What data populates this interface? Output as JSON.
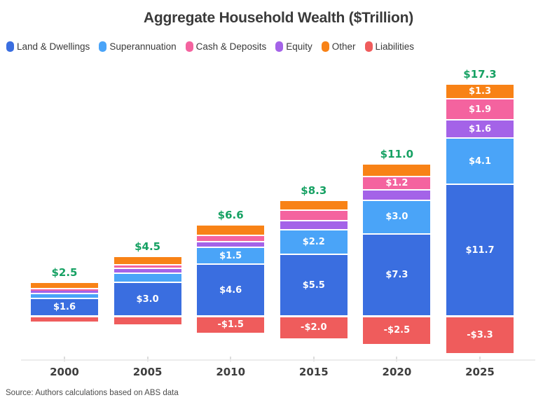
{
  "title": "Aggregate Household Wealth ($Trillion)",
  "source": "Source: Authors calculations based on ABS data",
  "colors": {
    "total_label": "#16a163",
    "axis_line": "#ececec",
    "background": "#ffffff"
  },
  "chart_data": {
    "type": "bar",
    "subtype": "stacked-with-negatives",
    "title": "Aggregate Household Wealth ($Trillion)",
    "categories": [
      "2000",
      "2005",
      "2010",
      "2015",
      "2020",
      "2025"
    ],
    "totals_labels": [
      "$2.5",
      "$4.5",
      "$6.6",
      "$8.3",
      "$11.0",
      "$17.3"
    ],
    "totals_values": [
      2.5,
      4.5,
      6.6,
      8.3,
      11.0,
      17.3
    ],
    "series": [
      {
        "name": "Land & Dwellings",
        "color": "#3a6ee0",
        "values": [
          1.6,
          3.0,
          4.6,
          5.5,
          7.3,
          11.7
        ],
        "labels": [
          "$1.6",
          "$3.0",
          "$4.6",
          "$5.5",
          "$7.3",
          "$11.7"
        ]
      },
      {
        "name": "Superannuation",
        "color": "#4aa4f8",
        "values": [
          0.4,
          0.8,
          1.5,
          2.2,
          3.0,
          4.1
        ],
        "labels": [
          null,
          null,
          "$1.5",
          "$2.2",
          "$3.0",
          "$4.1"
        ]
      },
      {
        "name": "Cash & Deposits",
        "color": "#f4639f",
        "values": [
          0.15,
          0.3,
          0.55,
          0.9,
          1.2,
          1.9
        ],
        "labels": [
          null,
          null,
          null,
          null,
          "$1.2",
          "$1.9"
        ]
      },
      {
        "name": "Equity",
        "color": "#a463e8",
        "values": [
          0.3,
          0.45,
          0.5,
          0.8,
          0.9,
          1.6
        ],
        "labels": [
          null,
          null,
          null,
          null,
          null,
          "$1.6"
        ]
      },
      {
        "name": "Other",
        "color": "#f88216",
        "values": [
          0.55,
          0.75,
          0.95,
          0.9,
          1.1,
          1.3
        ],
        "labels": [
          null,
          null,
          null,
          null,
          null,
          "$1.3"
        ]
      },
      {
        "name": "Liabilities",
        "color": "#ef5c5c",
        "values": [
          -0.5,
          -0.8,
          -1.5,
          -2.0,
          -2.5,
          -3.3
        ],
        "labels": [
          null,
          null,
          "-$1.5",
          "-$2.0",
          "-$2.5",
          "-$3.3"
        ]
      }
    ],
    "stack_order_bottom_to_top": [
      "Land & Dwellings",
      "Superannuation",
      "Equity",
      "Cash & Deposits",
      "Other"
    ],
    "legend_position": "top-left",
    "grid": false,
    "y_axis_visible": false,
    "ylim": [
      -3.5,
      21
    ]
  }
}
